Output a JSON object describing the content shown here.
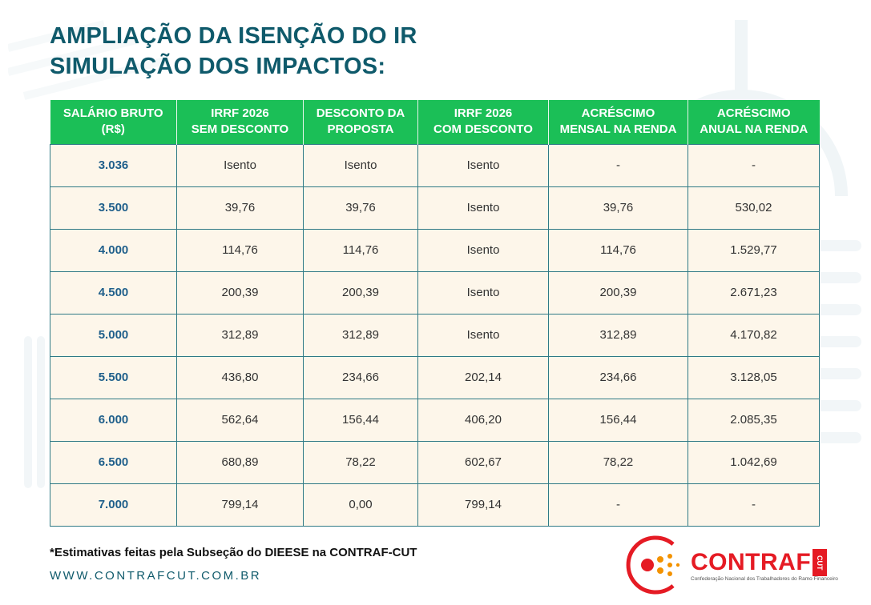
{
  "title": {
    "line1": "AMPLIAÇÃO DA ISENÇÃO DO IR",
    "line2": "SIMULAÇÃO DOS IMPACTOS:"
  },
  "table": {
    "headers": [
      [
        "SALÁRIO BRUTO",
        "(R$)"
      ],
      [
        "IRRF 2026",
        "SEM DESCONTO"
      ],
      [
        "DESCONTO DA",
        "PROPOSTA"
      ],
      [
        "IRRF 2026",
        "COM DESCONTO"
      ],
      [
        "ACRÉSCIMO",
        "MENSAL NA RENDA"
      ],
      [
        "ACRÉSCIMO",
        "ANUAL NA RENDA"
      ]
    ],
    "rows": [
      [
        "3.036",
        "Isento",
        "Isento",
        "Isento",
        "-",
        "-"
      ],
      [
        "3.500",
        "39,76",
        "39,76",
        "Isento",
        "39,76",
        "530,02"
      ],
      [
        "4.000",
        "114,76",
        "114,76",
        "Isento",
        "114,76",
        "1.529,77"
      ],
      [
        "4.500",
        "200,39",
        "200,39",
        "Isento",
        "200,39",
        "2.671,23"
      ],
      [
        "5.000",
        "312,89",
        "312,89",
        "Isento",
        "312,89",
        "4.170,82"
      ],
      [
        "5.500",
        "436,80",
        "234,66",
        "202,14",
        "234,66",
        "3.128,05"
      ],
      [
        "6.000",
        "562,64",
        "156,44",
        "406,20",
        "156,44",
        "2.085,35"
      ],
      [
        "6.500",
        "680,89",
        "78,22",
        "602,67",
        "78,22",
        "1.042,69"
      ],
      [
        "7.000",
        "799,14",
        "0,00",
        "799,14",
        "-",
        "-"
      ]
    ]
  },
  "footnote": "*Estimativas feitas pela Subseção do DIEESE na CONTRAF-CUT",
  "website": "WWW.CONTRAFCUT.COM.BR",
  "logo": {
    "name": "CONTRAF",
    "badge": "CUT",
    "subtitle": "Confederação Nacional dos Trabalhadores do Ramo Financeiro"
  },
  "colors": {
    "title": "#0f5a6b",
    "header_bg": "#1bbf57",
    "cell_bg": "#fdf6ea",
    "salary_text": "#1f5f8b",
    "grid": "#2f7a86",
    "brand_red": "#e51b24"
  }
}
